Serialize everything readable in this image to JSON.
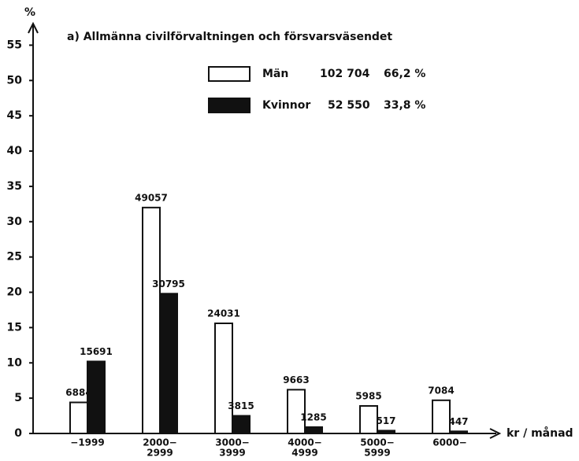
{
  "chart_data": {
    "type": "bar",
    "title": "a) Allmänna civilförvaltningen och försvarsväsendet",
    "y_label": "%",
    "x_label": "kr / månad",
    "categories": [
      [
        "−1999"
      ],
      [
        "2000−",
        "2999"
      ],
      [
        "3000−",
        "3999"
      ],
      [
        "4000−",
        "4999"
      ],
      [
        "5000−",
        "5999"
      ],
      [
        "6000−"
      ]
    ],
    "series": [
      {
        "name": "Män",
        "total": "102 704",
        "share": "66,2 %",
        "color": "#ffffff",
        "values": [
          4.4,
          32,
          15.6,
          6.2,
          3.9,
          4.7
        ],
        "counts": [
          6884,
          49057,
          24031,
          9663,
          5985,
          7084
        ]
      },
      {
        "name": "Kvinnor",
        "total": "52 550",
        "share": "33,8 %",
        "color": "#111111",
        "values": [
          10.2,
          19.8,
          2.5,
          0.9,
          0.4,
          0.3
        ],
        "counts": [
          15691,
          30795,
          3815,
          1285,
          517,
          447
        ]
      }
    ],
    "ylim": [
      0,
      57.5
    ],
    "yticks": [
      0,
      5,
      10,
      15,
      20,
      25,
      30,
      35,
      40,
      45,
      50,
      55
    ]
  }
}
